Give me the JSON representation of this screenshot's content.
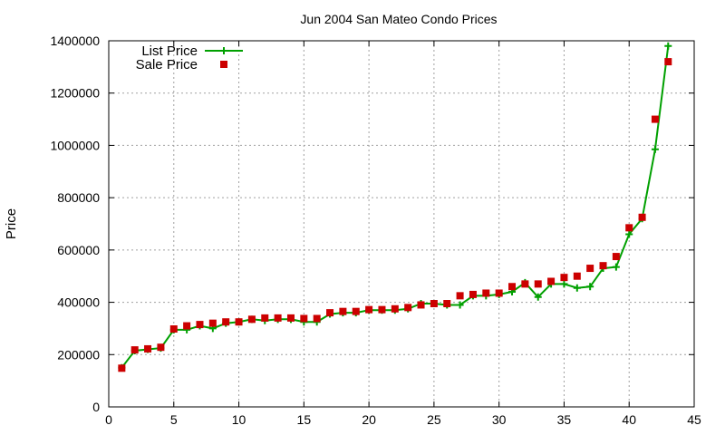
{
  "chart_data": {
    "type": "line",
    "title": "Jun 2004 San Mateo Condo Prices",
    "xlabel": "",
    "ylabel": "Price",
    "xlim": [
      0,
      45
    ],
    "ylim": [
      0,
      1400000
    ],
    "xticks": [
      0,
      5,
      10,
      15,
      20,
      25,
      30,
      35,
      40,
      45
    ],
    "yticks": [
      0,
      200000,
      400000,
      600000,
      800000,
      1000000,
      1200000,
      1400000
    ],
    "grid": true,
    "legend_position": "top-left",
    "series": [
      {
        "name": "List Price",
        "style": "line-plus",
        "color": "#00a000",
        "points": [
          [
            1,
            150000
          ],
          [
            2,
            215000
          ],
          [
            3,
            220000
          ],
          [
            4,
            225000
          ],
          [
            5,
            295000
          ],
          [
            6,
            295000
          ],
          [
            7,
            310000
          ],
          [
            8,
            300000
          ],
          [
            9,
            320000
          ],
          [
            10,
            325000
          ],
          [
            11,
            335000
          ],
          [
            12,
            330000
          ],
          [
            13,
            335000
          ],
          [
            14,
            335000
          ],
          [
            15,
            325000
          ],
          [
            16,
            325000
          ],
          [
            17,
            355000
          ],
          [
            18,
            360000
          ],
          [
            19,
            360000
          ],
          [
            20,
            370000
          ],
          [
            21,
            370000
          ],
          [
            22,
            370000
          ],
          [
            23,
            375000
          ],
          [
            24,
            395000
          ],
          [
            25,
            395000
          ],
          [
            26,
            390000
          ],
          [
            27,
            390000
          ],
          [
            28,
            425000
          ],
          [
            29,
            425000
          ],
          [
            30,
            430000
          ],
          [
            31,
            440000
          ],
          [
            32,
            475000
          ],
          [
            33,
            420000
          ],
          [
            34,
            470000
          ],
          [
            35,
            470000
          ],
          [
            36,
            455000
          ],
          [
            37,
            460000
          ],
          [
            38,
            530000
          ],
          [
            39,
            535000
          ],
          [
            40,
            660000
          ],
          [
            41,
            720000
          ],
          [
            42,
            985000
          ],
          [
            43,
            1380000
          ]
        ]
      },
      {
        "name": "Sale Price",
        "style": "square-markers",
        "color": "#cc0000",
        "points": [
          [
            1,
            148000
          ],
          [
            2,
            218000
          ],
          [
            3,
            222000
          ],
          [
            4,
            228000
          ],
          [
            5,
            298000
          ],
          [
            6,
            310000
          ],
          [
            7,
            315000
          ],
          [
            8,
            320000
          ],
          [
            9,
            325000
          ],
          [
            10,
            325000
          ],
          [
            11,
            335000
          ],
          [
            12,
            340000
          ],
          [
            13,
            340000
          ],
          [
            14,
            340000
          ],
          [
            15,
            338000
          ],
          [
            16,
            338000
          ],
          [
            17,
            360000
          ],
          [
            18,
            365000
          ],
          [
            19,
            365000
          ],
          [
            20,
            372000
          ],
          [
            21,
            372000
          ],
          [
            22,
            375000
          ],
          [
            23,
            380000
          ],
          [
            24,
            390000
          ],
          [
            25,
            395000
          ],
          [
            26,
            395000
          ],
          [
            27,
            425000
          ],
          [
            28,
            430000
          ],
          [
            29,
            435000
          ],
          [
            30,
            435000
          ],
          [
            31,
            460000
          ],
          [
            32,
            470000
          ],
          [
            33,
            470000
          ],
          [
            34,
            480000
          ],
          [
            35,
            495000
          ],
          [
            36,
            500000
          ],
          [
            37,
            530000
          ],
          [
            38,
            540000
          ],
          [
            39,
            575000
          ],
          [
            40,
            685000
          ],
          [
            41,
            725000
          ],
          [
            42,
            1100000
          ],
          [
            43,
            1320000
          ]
        ]
      }
    ]
  }
}
